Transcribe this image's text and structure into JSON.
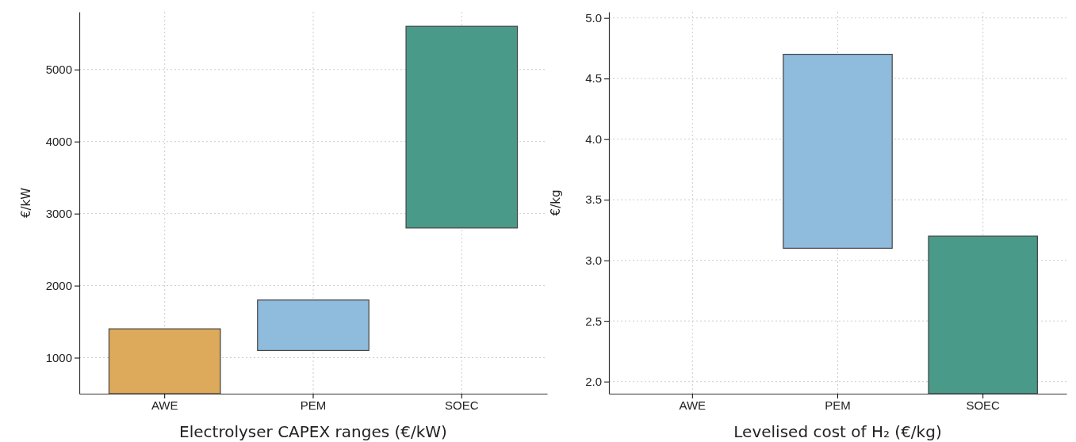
{
  "chart_data": [
    {
      "type": "bar",
      "xlabel": "Electrolyser CAPEX ranges (€/kW)",
      "ylabel": "€/kW",
      "categories": [
        "AWE",
        "PEM",
        "SOEC"
      ],
      "base": [
        500,
        1100,
        2800
      ],
      "values": [
        900,
        700,
        2800
      ],
      "colors": [
        "#dcaa5a",
        "#8fbbdc",
        "#4a9a8a"
      ],
      "ylim": [
        500,
        5800
      ],
      "yticks": [
        1000,
        2000,
        3000,
        4000,
        5000
      ],
      "grid": true
    },
    {
      "type": "bar",
      "xlabel": "Levelised cost of H₂ (€/kg)",
      "ylabel": "€/kg",
      "categories": [
        "AWE",
        "PEM",
        "SOEC"
      ],
      "base": [
        null,
        3.1,
        1.9
      ],
      "values": [
        null,
        1.6,
        1.3
      ],
      "colors": [
        null,
        "#8fbbdc",
        "#4a9a8a"
      ],
      "ylim": [
        1.9,
        5.05
      ],
      "yticks": [
        {
          "value": 2,
          "label": "2.0"
        },
        {
          "value": 2.5,
          "label": "2.5"
        },
        {
          "value": 3,
          "label": "3.0"
        },
        {
          "value": 3.5,
          "label": "3.5"
        },
        {
          "value": 4,
          "label": "4.0"
        },
        {
          "value": 4.5,
          "label": "4.5"
        },
        {
          "value": 5,
          "label": "5.0"
        }
      ],
      "grid": true
    }
  ]
}
